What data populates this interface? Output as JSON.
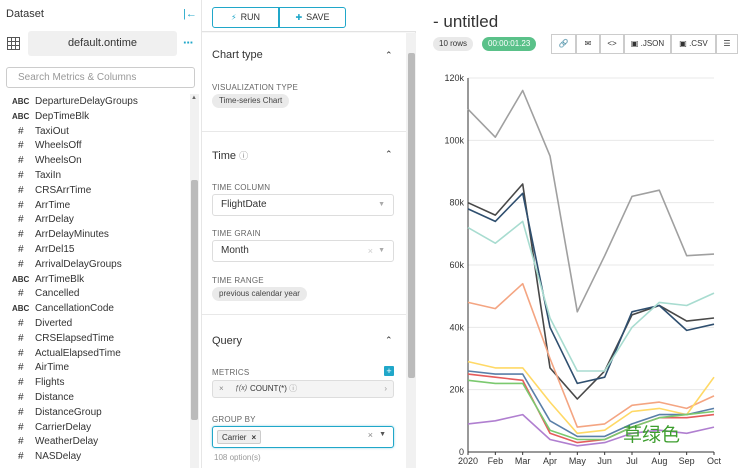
{
  "datasource": {
    "header": "Dataset",
    "name": "default.ontime",
    "search_placeholder": "Search Metrics & Columns",
    "columns": [
      {
        "type": "ABC",
        "name": "DepartureDelayGroups"
      },
      {
        "type": "ABC",
        "name": "DepTimeBlk"
      },
      {
        "type": "#",
        "name": "TaxiOut"
      },
      {
        "type": "#",
        "name": "WheelsOff"
      },
      {
        "type": "#",
        "name": "WheelsOn"
      },
      {
        "type": "#",
        "name": "TaxiIn"
      },
      {
        "type": "#",
        "name": "CRSArrTime"
      },
      {
        "type": "#",
        "name": "ArrTime"
      },
      {
        "type": "#",
        "name": "ArrDelay"
      },
      {
        "type": "#",
        "name": "ArrDelayMinutes"
      },
      {
        "type": "#",
        "name": "ArrDel15"
      },
      {
        "type": "#",
        "name": "ArrivalDelayGroups"
      },
      {
        "type": "ABC",
        "name": "ArrTimeBlk"
      },
      {
        "type": "#",
        "name": "Cancelled"
      },
      {
        "type": "ABC",
        "name": "CancellationCode"
      },
      {
        "type": "#",
        "name": "Diverted"
      },
      {
        "type": "#",
        "name": "CRSElapsedTime"
      },
      {
        "type": "#",
        "name": "ActualElapsedTime"
      },
      {
        "type": "#",
        "name": "AirTime"
      },
      {
        "type": "#",
        "name": "Flights"
      },
      {
        "type": "#",
        "name": "Distance"
      },
      {
        "type": "#",
        "name": "DistanceGroup"
      },
      {
        "type": "#",
        "name": "CarrierDelay"
      },
      {
        "type": "#",
        "name": "WeatherDelay"
      },
      {
        "type": "#",
        "name": "NASDelay"
      }
    ]
  },
  "controls": {
    "run_label": "RUN",
    "save_label": "SAVE",
    "chart_type": {
      "title": "Chart type",
      "viz_label": "VISUALIZATION TYPE",
      "viz_value": "Time-series Chart"
    },
    "time": {
      "title": "Time",
      "column_label": "TIME COLUMN",
      "column_value": "FlightDate",
      "grain_label": "TIME GRAIN",
      "grain_value": "Month",
      "range_label": "TIME RANGE",
      "range_value": "previous calendar year"
    },
    "query": {
      "title": "Query",
      "metrics_label": "METRICS",
      "metric_value": "COUNT(*)",
      "metric_fx": "ƒ(x)",
      "groupby_label": "GROUP BY",
      "groupby_tag": "Carrier",
      "options_count": "108 option(s)"
    }
  },
  "result": {
    "title": "- untitled",
    "rows": "10 rows",
    "timer": "00:00:01.23",
    "json_label": ".JSON",
    "csv_label": ".CSV",
    "watermark": "草绿色"
  },
  "chart_data": {
    "type": "line",
    "categories": [
      "2020",
      "Feb",
      "Mar",
      "Apr",
      "May",
      "Jun",
      "Jul",
      "Aug",
      "Sep",
      "Oct"
    ],
    "y_ticks": [
      "0",
      "20k",
      "40k",
      "60k",
      "80k",
      "100k",
      "120k"
    ],
    "ylim": [
      0,
      120000
    ],
    "grid": true,
    "series": [
      {
        "color": "#a0a0a0",
        "values": [
          110000,
          101000,
          116000,
          95000,
          45000,
          63000,
          82000,
          84000,
          63000,
          63500
        ]
      },
      {
        "color": "#484848",
        "values": [
          80000,
          76000,
          86000,
          27000,
          17000,
          26000,
          44000,
          47000,
          42000,
          43000
        ]
      },
      {
        "color": "#2f4f6f",
        "values": [
          78000,
          74000,
          83000,
          40000,
          22000,
          24000,
          45000,
          47000,
          39000,
          41000
        ]
      },
      {
        "color": "#a8dcd0",
        "values": [
          72000,
          67000,
          74000,
          43000,
          26000,
          26000,
          40000,
          48000,
          47000,
          51000
        ]
      },
      {
        "color": "#f4a582",
        "values": [
          48000,
          46000,
          54000,
          30000,
          8000,
          9000,
          15000,
          16000,
          14000,
          18000
        ]
      },
      {
        "color": "#ffd966",
        "values": [
          29000,
          27000,
          27000,
          16000,
          6000,
          7000,
          13000,
          14000,
          12000,
          24000
        ]
      },
      {
        "color": "#5a7fa8",
        "values": [
          26000,
          25000,
          25000,
          10000,
          5000,
          5000,
          9000,
          12000,
          12000,
          14000
        ]
      },
      {
        "color": "#e55c5c",
        "values": [
          25000,
          24000,
          23000,
          6000,
          3000,
          4000,
          8000,
          11000,
          11000,
          12000
        ]
      },
      {
        "color": "#7bc96f",
        "values": [
          23000,
          22000,
          22000,
          7000,
          4000,
          4000,
          8000,
          11000,
          12000,
          13000
        ]
      },
      {
        "color": "#b07fd0",
        "values": [
          9000,
          10000,
          12000,
          4000,
          2000,
          3000,
          6000,
          7000,
          6000,
          8000
        ]
      }
    ]
  }
}
